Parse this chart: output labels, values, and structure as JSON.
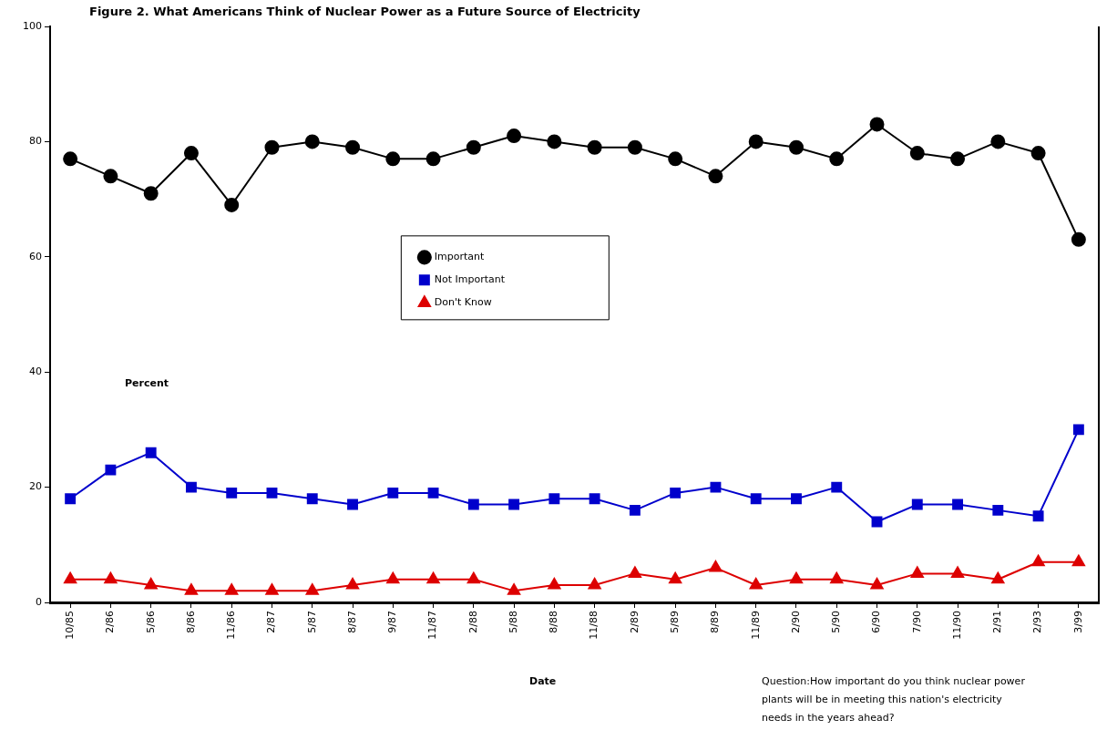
{
  "chart_data": {
    "type": "line",
    "title": "Figure 2.  What Americans Think of Nuclear Power as a Future Source of Electricity",
    "xlabel": "Date",
    "ylabel": "Percent",
    "annotations": [
      "Question:How important do you think nuclear power plants will be in meeting this nation's electricity needs in the years ahead?"
    ],
    "categories": [
      "10/85",
      "2/86",
      "5/86",
      "8/86",
      "11/86",
      "2/87",
      "5/87",
      "8/87",
      "9/87",
      "11/87",
      "2/88",
      "5/88",
      "8/88",
      "11/88",
      "2/89",
      "5/89",
      "8/89",
      "11/89",
      "2/90",
      "5/90",
      "6/90",
      "7/90",
      "11/90",
      "2/91",
      "2/93",
      "3/99"
    ],
    "series": [
      {
        "name": "Important",
        "color": "#000000",
        "marker": "circle",
        "values": [
          77,
          74,
          71,
          78,
          69,
          79,
          80,
          79,
          77,
          77,
          79,
          81,
          80,
          79,
          79,
          77,
          74,
          80,
          79,
          77,
          83,
          78,
          77,
          80,
          78,
          63
        ]
      },
      {
        "name": "Not Important",
        "color": "#0000cc",
        "marker": "square",
        "values": [
          18,
          23,
          26,
          20,
          19,
          19,
          18,
          17,
          19,
          19,
          17,
          17,
          18,
          18,
          16,
          19,
          20,
          18,
          18,
          20,
          14,
          17,
          17,
          16,
          15,
          30
        ]
      },
      {
        "name": "Don't Know",
        "color": "#dd0000",
        "marker": "triangle",
        "values": [
          4,
          4,
          3,
          2,
          2,
          2,
          2,
          3,
          4,
          4,
          4,
          2,
          3,
          3,
          5,
          4,
          6,
          3,
          4,
          4,
          3,
          5,
          5,
          4,
          7,
          7
        ]
      }
    ],
    "ylim": [
      0,
      100
    ],
    "yticks": [
      0,
      20,
      40,
      60,
      80,
      100
    ],
    "grid": false,
    "legend": "center",
    "line_style": "solid"
  }
}
